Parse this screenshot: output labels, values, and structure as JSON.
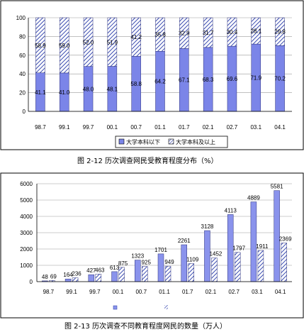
{
  "chart_data": [
    {
      "type": "bar",
      "stacked": true,
      "categories": [
        "98.7",
        "99.1",
        "99.7",
        "00.1",
        "00.7",
        "01.1",
        "01.7",
        "02.1",
        "02.7",
        "03.1",
        "04.1"
      ],
      "series": [
        {
          "name": "大学本科以下",
          "values": [
            41.1,
            41.0,
            48.0,
            48.1,
            58.8,
            64.2,
            67.1,
            68.3,
            69.6,
            71.9,
            70.2
          ],
          "color": "#7b85e8",
          "pattern": "solid"
        },
        {
          "name": "大学本科及以上",
          "values": [
            58.9,
            59.0,
            52.0,
            51.9,
            41.2,
            35.8,
            32.9,
            31.7,
            30.4,
            28.1,
            29.8
          ],
          "color": "#3a4bb0",
          "pattern": "hatch"
        }
      ],
      "yticks": [
        0,
        20,
        40,
        60,
        80,
        100
      ],
      "ylim": [
        0,
        100
      ],
      "caption": "图 2-12  历次调查网民受教育程度分布（%）",
      "legend_position": "bottom-right"
    },
    {
      "type": "bar",
      "grouped": true,
      "categories": [
        "98.7",
        "99.1",
        "99.7",
        "00.1",
        "00.7",
        "01.1",
        "01.7",
        "02.1",
        "02.7",
        "03.1",
        "04.1"
      ],
      "series": [
        {
          "values": [
            48,
            164,
            427,
            613,
            1323,
            1701,
            2261,
            3128,
            4113,
            4889,
            5581
          ],
          "color": "#8a93ec",
          "pattern": "solid"
        },
        {
          "values": [
            69,
            236,
            463,
            875,
            925,
            949,
            1109,
            1452,
            1797,
            1911,
            2369
          ],
          "color": "#3a4bb0",
          "pattern": "hatch"
        }
      ],
      "yticks": [
        0,
        1000,
        2000,
        3000,
        4000,
        5000,
        6000
      ],
      "ylim": [
        0,
        6000
      ],
      "caption": "图 2-13  历次调查不同教育程度网民的数量（万人）",
      "legend_icons": [
        "legend-solid-swatch",
        "legend-hatch-swatch"
      ]
    }
  ]
}
